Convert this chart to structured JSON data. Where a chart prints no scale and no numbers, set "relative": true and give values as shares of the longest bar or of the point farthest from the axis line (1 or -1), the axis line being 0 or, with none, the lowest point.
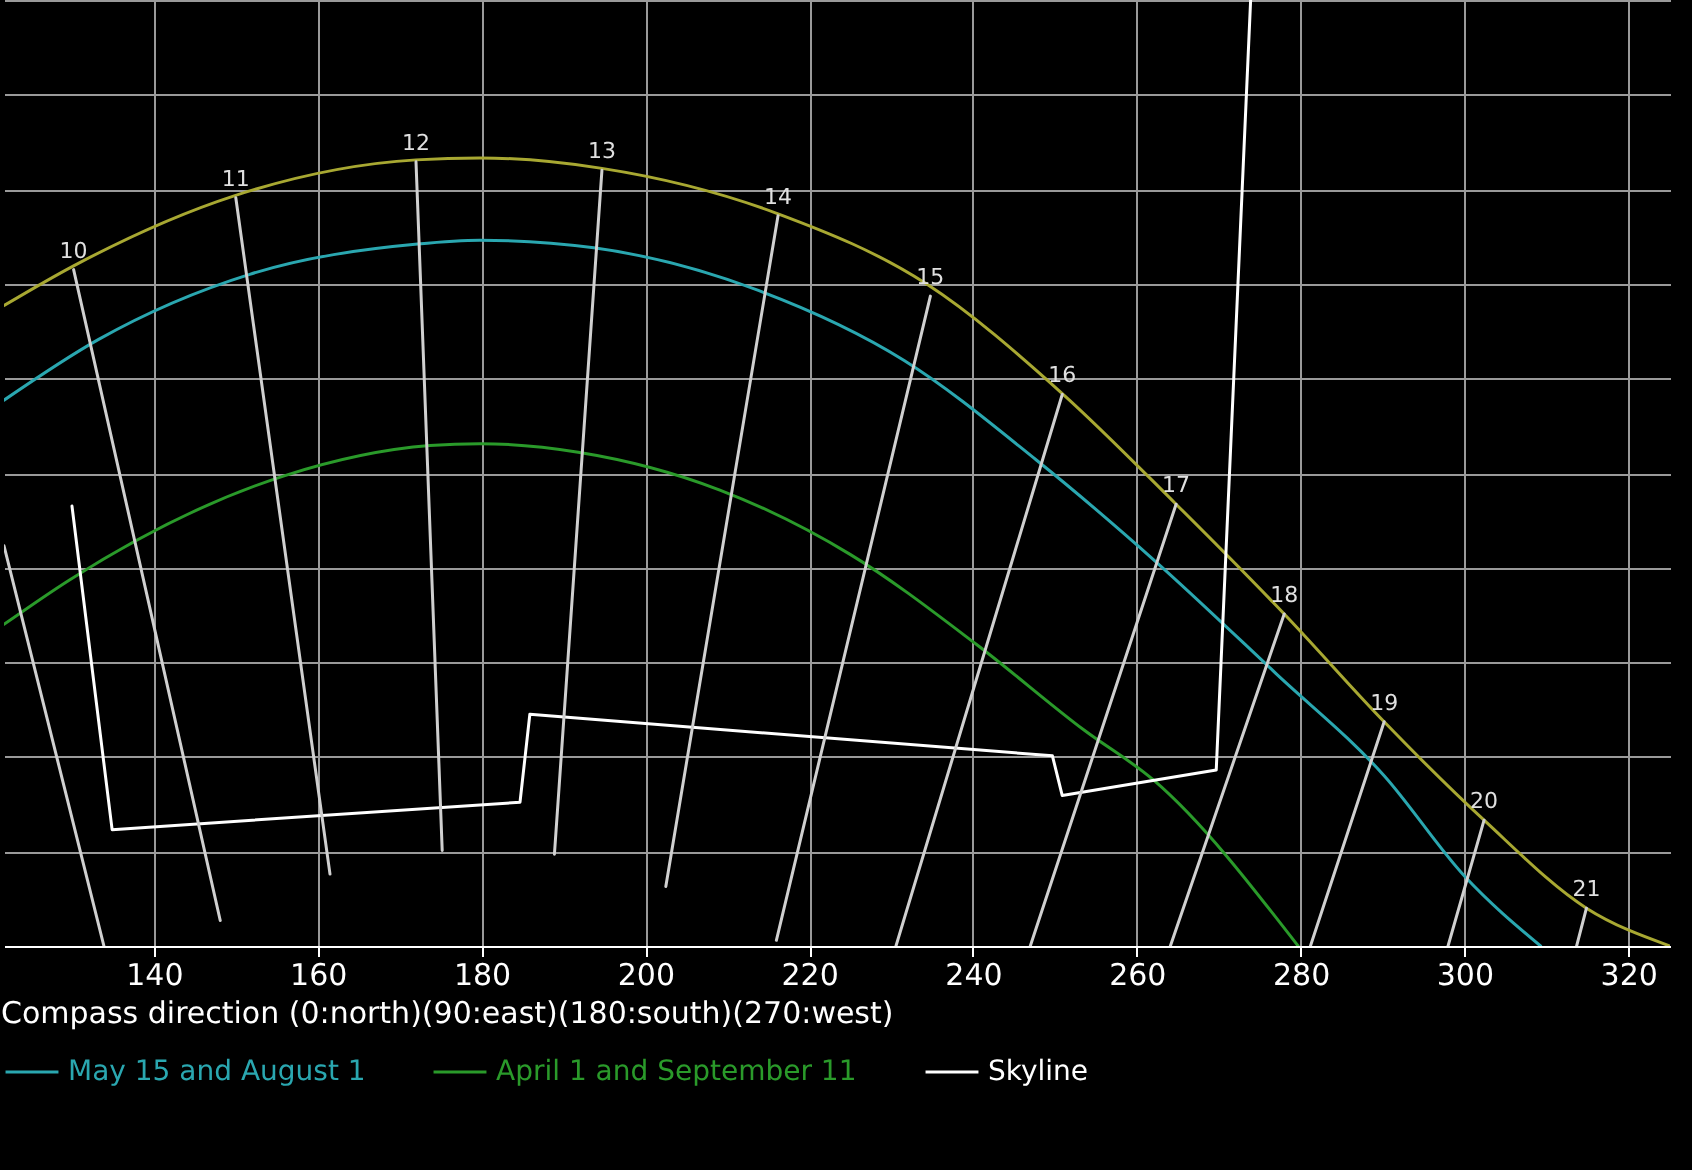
{
  "chart_data": {
    "type": "line",
    "relative": true,
    "xlabel": "Compass direction (0:north)(90:east)(180:south)(270:west)",
    "xlim": [
      121.7,
      325.1
    ],
    "xticks": [
      140,
      160,
      180,
      200,
      220,
      240,
      260,
      280,
      300,
      320
    ],
    "grid": true,
    "legend": "bottom",
    "series": [
      {
        "color": "#a8a832",
        "x": [
          121.7,
          130.2,
          149.8,
          172,
          179.8,
          194.7,
          216.2,
          234.3,
          250.9,
          264.8,
          278,
          290.2,
          302.4,
          314.9,
          325.1
        ],
        "values": [
          0.677,
          0.719,
          0.793,
          0.831,
          0.833,
          0.822,
          0.774,
          0.7,
          0.584,
          0.467,
          0.351,
          0.237,
          0.133,
          0.04,
          0
        ]
      },
      {
        "name": "May 15 and August 1",
        "color": "#2aa7b0",
        "x": [
          121.7,
          133.2,
          151.7,
          172.2,
          179.8,
          193.7,
          213.8,
          231.6,
          247.7,
          262.1,
          277,
          290.2,
          300,
          309.3
        ],
        "values": [
          0.577,
          0.641,
          0.71,
          0.742,
          0.746,
          0.738,
          0.693,
          0.619,
          0.514,
          0.408,
          0.288,
          0.18,
          0.074,
          0
        ]
      },
      {
        "name": "April 1 and September 11",
        "color": "#2a9a2a",
        "x": [
          121.7,
          129.7,
          155.9,
          173.7,
          179.8,
          191.8,
          209.1,
          225,
          240.4,
          253.6,
          262.1,
          279.7
        ],
        "values": [
          0.34,
          0.387,
          0.497,
          0.529,
          0.531,
          0.522,
          0.482,
          0.414,
          0.319,
          0.228,
          0.175,
          0
        ]
      },
      {
        "name": "Skyline",
        "color": "#ffffff",
        "x": [
          130,
          134.9,
          184.7,
          185.9,
          249.7,
          250.9,
          269.7,
          273.9
        ],
        "values": [
          0.465,
          0.123,
          0.152,
          0.245,
          0.201,
          0.159,
          0.186,
          1
        ]
      },
      {
        "color": "#d0d0d0",
        "x": [
          121.7,
          133.9
        ],
        "values": [
          0.423,
          0
        ]
      },
      {
        "color": "#d0d0d0",
        "x": [
          130.2,
          148.1
        ],
        "values": [
          0.715,
          0.027
        ]
      },
      {
        "color": "#d0d0d0",
        "x": [
          150,
          161.5
        ],
        "values": [
          0.791,
          0.076
        ]
      },
      {
        "color": "#d0d0d0",
        "x": [
          172,
          175.2
        ],
        "values": [
          0.829,
          0.101
        ]
      },
      {
        "color": "#d0d0d0",
        "x": [
          194.7,
          188.9
        ],
        "values": [
          0.82,
          0.097
        ]
      },
      {
        "color": "#d0d0d0",
        "x": [
          216.2,
          202.5
        ],
        "values": [
          0.772,
          0.063
        ]
      },
      {
        "color": "#d0d0d0",
        "x": [
          234.8,
          216
        ],
        "values": [
          0.687,
          0.006
        ]
      },
      {
        "color": "#d0d0d0",
        "x": [
          250.9,
          230.6
        ],
        "values": [
          0.583,
          0
        ]
      },
      {
        "color": "#d0d0d0",
        "x": [
          264.8,
          247
        ],
        "values": [
          0.467,
          0
        ]
      },
      {
        "color": "#d0d0d0",
        "x": [
          278,
          264.1
        ],
        "values": [
          0.351,
          0
        ]
      },
      {
        "color": "#d0d0d0",
        "x": [
          290.2,
          281.2
        ],
        "values": [
          0.237,
          0
        ]
      },
      {
        "color": "#d0d0d0",
        "x": [
          302.4,
          298
        ],
        "values": [
          0.133,
          0
        ]
      },
      {
        "color": "#d0d0d0",
        "x": [
          314.9,
          313.7
        ],
        "values": [
          0.04,
          0
        ]
      }
    ],
    "annotations": [
      {
        "text": "10",
        "x": 130.2,
        "y": 0.715
      },
      {
        "text": "11",
        "x": 150,
        "y": 0.791
      },
      {
        "text": "12",
        "x": 172,
        "y": 0.829
      },
      {
        "text": "13",
        "x": 194.7,
        "y": 0.82
      },
      {
        "text": "14",
        "x": 216.2,
        "y": 0.772
      },
      {
        "text": "15",
        "x": 234.8,
        "y": 0.687
      },
      {
        "text": "16",
        "x": 250.9,
        "y": 0.583
      },
      {
        "text": "17",
        "x": 264.8,
        "y": 0.467
      },
      {
        "text": "18",
        "x": 278,
        "y": 0.351
      },
      {
        "text": "19",
        "x": 290.2,
        "y": 0.237
      },
      {
        "text": "20",
        "x": 302.4,
        "y": 0.133
      },
      {
        "text": "21",
        "x": 314.9,
        "y": 0.04
      }
    ]
  }
}
